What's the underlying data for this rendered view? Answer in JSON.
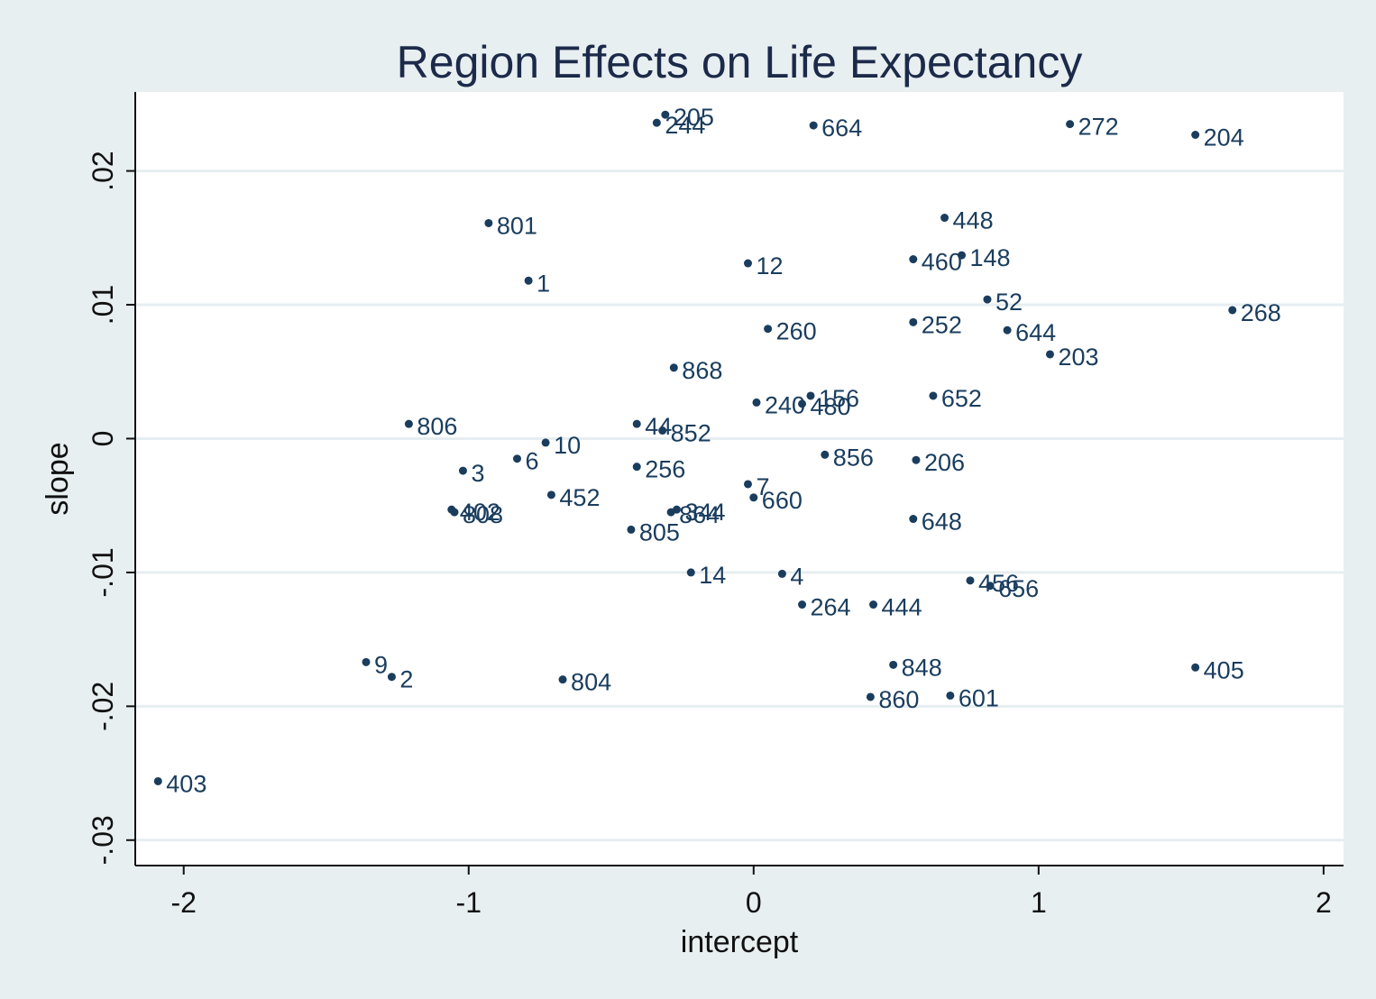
{
  "chart_data": {
    "type": "scatter",
    "title": "Region Effects on Life Expectancy",
    "xlabel": "intercept",
    "ylabel": "slope",
    "xlim": [
      -2.17,
      2.07
    ],
    "ylim": [
      -0.0319,
      0.0259
    ],
    "xticks": [
      -2,
      -1,
      0,
      1,
      2
    ],
    "xtick_labels": [
      "-2",
      "-1",
      "0",
      "1",
      "2"
    ],
    "yticks": [
      -0.03,
      -0.02,
      -0.01,
      0,
      0.01,
      0.02
    ],
    "ytick_labels": [
      "-.03",
      "-.02",
      "-.01",
      "0",
      ".01",
      ".02"
    ],
    "grid": "horizontal",
    "colors": {
      "background": "#e8eff1",
      "plot_background": "#ffffff",
      "marker": "#1a3d5e",
      "grid": "#e6eef1",
      "title": "#1c2a4a"
    },
    "points": [
      {
        "label": "205",
        "x": -0.31,
        "y": 0.0242
      },
      {
        "label": "244",
        "x": -0.34,
        "y": 0.0236
      },
      {
        "label": "664",
        "x": 0.21,
        "y": 0.0234
      },
      {
        "label": "272",
        "x": 1.11,
        "y": 0.0235
      },
      {
        "label": "204",
        "x": 1.55,
        "y": 0.0227
      },
      {
        "label": "801",
        "x": -0.93,
        "y": 0.0161
      },
      {
        "label": "448",
        "x": 0.67,
        "y": 0.0165
      },
      {
        "label": "148",
        "x": 0.73,
        "y": 0.0137
      },
      {
        "label": "460",
        "x": 0.56,
        "y": 0.0134
      },
      {
        "label": "12",
        "x": -0.02,
        "y": 0.0131
      },
      {
        "label": "1",
        "x": -0.79,
        "y": 0.0118
      },
      {
        "label": "52",
        "x": 0.82,
        "y": 0.0104
      },
      {
        "label": "268",
        "x": 1.68,
        "y": 0.0096
      },
      {
        "label": "252",
        "x": 0.56,
        "y": 0.0087
      },
      {
        "label": "260",
        "x": 0.05,
        "y": 0.0082
      },
      {
        "label": "644",
        "x": 0.89,
        "y": 0.0081
      },
      {
        "label": "203",
        "x": 1.04,
        "y": 0.0063
      },
      {
        "label": "868",
        "x": -0.28,
        "y": 0.0053
      },
      {
        "label": "156",
        "x": 0.2,
        "y": 0.0032
      },
      {
        "label": "652",
        "x": 0.63,
        "y": 0.0032
      },
      {
        "label": "240",
        "x": 0.01,
        "y": 0.0027
      },
      {
        "label": "480",
        "x": 0.17,
        "y": 0.0026
      },
      {
        "label": "806",
        "x": -1.21,
        "y": 0.0011
      },
      {
        "label": "44",
        "x": -0.41,
        "y": 0.0011
      },
      {
        "label": "852",
        "x": -0.32,
        "y": 0.0006
      },
      {
        "label": "10",
        "x": -0.73,
        "y": -0.0003
      },
      {
        "label": "856",
        "x": 0.25,
        "y": -0.0012
      },
      {
        "label": "6",
        "x": -0.83,
        "y": -0.0015
      },
      {
        "label": "206",
        "x": 0.57,
        "y": -0.0016
      },
      {
        "label": "256",
        "x": -0.41,
        "y": -0.0021
      },
      {
        "label": "3",
        "x": -1.02,
        "y": -0.0024
      },
      {
        "label": "7",
        "x": -0.02,
        "y": -0.0034
      },
      {
        "label": "452",
        "x": -0.71,
        "y": -0.0042
      },
      {
        "label": "660",
        "x": 0.0,
        "y": -0.0044
      },
      {
        "label": "402",
        "x": -1.06,
        "y": -0.0053
      },
      {
        "label": "808",
        "x": -1.05,
        "y": -0.0055
      },
      {
        "label": "344",
        "x": -0.27,
        "y": -0.0053
      },
      {
        "label": "864",
        "x": -0.29,
        "y": -0.0055
      },
      {
        "label": "648",
        "x": 0.56,
        "y": -0.006
      },
      {
        "label": "805",
        "x": -0.43,
        "y": -0.0068
      },
      {
        "label": "14",
        "x": -0.22,
        "y": -0.01
      },
      {
        "label": "4",
        "x": 0.1,
        "y": -0.0101
      },
      {
        "label": "456",
        "x": 0.76,
        "y": -0.0106
      },
      {
        "label": "656",
        "x": 0.83,
        "y": -0.011
      },
      {
        "label": "264",
        "x": 0.17,
        "y": -0.0124
      },
      {
        "label": "444",
        "x": 0.42,
        "y": -0.0124
      },
      {
        "label": "9",
        "x": -1.36,
        "y": -0.0167
      },
      {
        "label": "848",
        "x": 0.49,
        "y": -0.0169
      },
      {
        "label": "405",
        "x": 1.55,
        "y": -0.0171
      },
      {
        "label": "2",
        "x": -1.27,
        "y": -0.0178
      },
      {
        "label": "804",
        "x": -0.67,
        "y": -0.018
      },
      {
        "label": "860",
        "x": 0.41,
        "y": -0.0193
      },
      {
        "label": "601",
        "x": 0.69,
        "y": -0.0192
      },
      {
        "label": "403",
        "x": -2.09,
        "y": -0.0256
      }
    ]
  }
}
